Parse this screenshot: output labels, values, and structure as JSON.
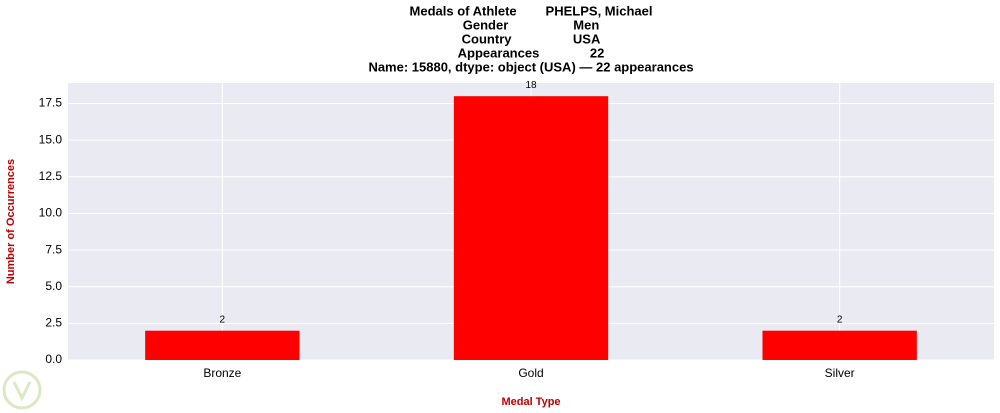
{
  "chart_data": {
    "type": "bar",
    "title": [
      "Medals of Athlete        PHELPS, Michael",
      "Gender                  Men",
      "Country                 USA",
      "Appearances              22",
      "Name: 15880, dtype: object (USA) — 22 appearances"
    ],
    "categories": [
      "Bronze",
      "Gold",
      "Silver"
    ],
    "values": [
      2,
      18,
      2
    ],
    "color": "#ff0000",
    "xlabel": "Medal Type",
    "ylabel": "Number of Occurrences",
    "ylim": [
      0,
      18.9
    ],
    "yticks": [
      {
        "value": 0,
        "label": "0.0"
      },
      {
        "value": 2.5,
        "label": "2.5"
      },
      {
        "value": 5,
        "label": "5.0"
      },
      {
        "value": 7.5,
        "label": "7.5"
      },
      {
        "value": 10,
        "label": "10.0"
      },
      {
        "value": 12.5,
        "label": "12.5"
      },
      {
        "value": 15,
        "label": "15.0"
      },
      {
        "value": 17.5,
        "label": "17.5"
      }
    ],
    "grid": true
  }
}
